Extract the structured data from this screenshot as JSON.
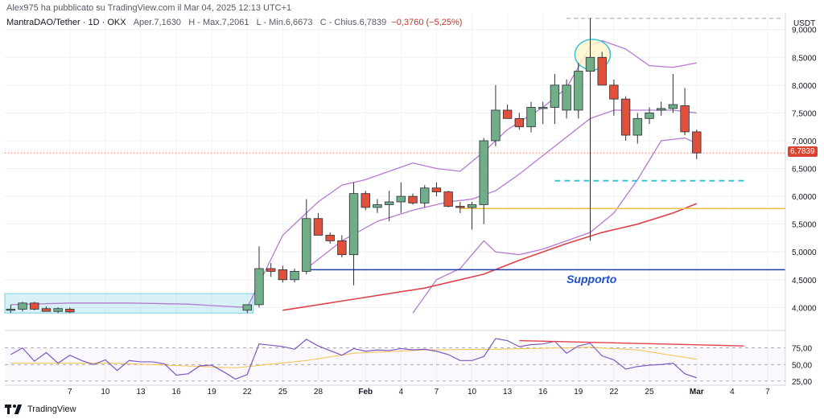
{
  "header": {
    "publisher": "Alex975 ha pubblicato su TradingView.com il Mar 04, 2025 12:13 UTC+1",
    "symbol": "MantraDAO/Tether · 1D · OKX",
    "open_label": "O",
    "open_text": "Aper.7,1630",
    "high_text": "H - Max.7,2061",
    "low_text": "L - Min.6,6673",
    "close_text": "C - Chius.6,7839",
    "change_text": "−0,3760 (−5,25%)"
  },
  "footer": {
    "brand": "TradingView"
  },
  "chart_data": {
    "type": "candlestick",
    "currency": "USDT",
    "last_price_label": "6,7839",
    "annotation": "Supporto",
    "price_axis": {
      "min": 3.6,
      "max": 9.3,
      "ticks": [
        9.0,
        8.5,
        8.0,
        7.5,
        7.0,
        6.5,
        6.0,
        5.5,
        5.0,
        4.5,
        4.0
      ],
      "tick_labels": [
        "9,0000",
        "8,5000",
        "8,0000",
        "7,5000",
        "7,0000",
        "6,5000",
        "6,0000",
        "5,5000",
        "5,0000",
        "4,5000",
        "4,0000"
      ]
    },
    "time_axis": {
      "labels": [
        "7",
        "10",
        "13",
        "16",
        "19",
        "22",
        "25",
        "28",
        "Feb",
        "4",
        "7",
        "10",
        "13",
        "16",
        "19",
        "22",
        "25",
        "Mar",
        "4",
        "7"
      ],
      "label_days": [
        6,
        9,
        12,
        15,
        18,
        21,
        24,
        27,
        31,
        34,
        37,
        40,
        43,
        46,
        49,
        52,
        55,
        59,
        62,
        65
      ],
      "day_min": 1,
      "day_max": 66
    },
    "candles": [
      {
        "d": 1,
        "o": 3.95,
        "h": 4.05,
        "l": 3.9,
        "c": 3.97
      },
      {
        "d": 2,
        "o": 3.97,
        "h": 4.1,
        "l": 3.93,
        "c": 4.08
      },
      {
        "d": 3,
        "o": 4.08,
        "h": 4.1,
        "l": 3.95,
        "c": 3.97
      },
      {
        "d": 4,
        "o": 3.98,
        "h": 4.02,
        "l": 3.93,
        "c": 3.93
      },
      {
        "d": 5,
        "o": 3.93,
        "h": 4.0,
        "l": 3.9,
        "c": 3.98
      },
      {
        "d": 6,
        "o": 3.97,
        "h": 4.0,
        "l": 3.9,
        "c": 3.92
      },
      {
        "d": 21,
        "o": 3.95,
        "h": 4.05,
        "l": 3.9,
        "c": 4.05
      },
      {
        "d": 22,
        "o": 4.05,
        "h": 5.1,
        "l": 4.0,
        "c": 4.7
      },
      {
        "d": 23,
        "o": 4.7,
        "h": 4.8,
        "l": 4.55,
        "c": 4.65
      },
      {
        "d": 24,
        "o": 4.68,
        "h": 4.75,
        "l": 4.45,
        "c": 4.5
      },
      {
        "d": 25,
        "o": 4.5,
        "h": 4.7,
        "l": 4.45,
        "c": 4.65
      },
      {
        "d": 26,
        "o": 4.65,
        "h": 5.95,
        "l": 4.6,
        "c": 5.6
      },
      {
        "d": 27,
        "o": 5.6,
        "h": 5.7,
        "l": 5.3,
        "c": 5.3
      },
      {
        "d": 28,
        "o": 5.3,
        "h": 5.35,
        "l": 5.15,
        "c": 5.2
      },
      {
        "d": 29,
        "o": 5.2,
        "h": 5.3,
        "l": 4.9,
        "c": 4.95
      },
      {
        "d": 30,
        "o": 4.95,
        "h": 6.25,
        "l": 4.4,
        "c": 6.05
      },
      {
        "d": 31,
        "o": 6.05,
        "h": 6.1,
        "l": 5.75,
        "c": 5.8
      },
      {
        "d": 32,
        "o": 5.8,
        "h": 5.95,
        "l": 5.7,
        "c": 5.85
      },
      {
        "d": 33,
        "o": 5.85,
        "h": 6.1,
        "l": 5.55,
        "c": 5.9
      },
      {
        "d": 34,
        "o": 5.9,
        "h": 6.25,
        "l": 5.7,
        "c": 6.0
      },
      {
        "d": 35,
        "o": 6.0,
        "h": 6.05,
        "l": 5.85,
        "c": 5.88
      },
      {
        "d": 36,
        "o": 5.88,
        "h": 6.2,
        "l": 5.8,
        "c": 6.15
      },
      {
        "d": 37,
        "o": 6.15,
        "h": 6.25,
        "l": 6.0,
        "c": 6.08
      },
      {
        "d": 38,
        "o": 6.08,
        "h": 6.1,
        "l": 5.8,
        "c": 5.82
      },
      {
        "d": 39,
        "o": 5.82,
        "h": 5.9,
        "l": 5.7,
        "c": 5.8
      },
      {
        "d": 40,
        "o": 5.8,
        "h": 5.9,
        "l": 5.4,
        "c": 5.85
      },
      {
        "d": 41,
        "o": 5.85,
        "h": 7.05,
        "l": 5.5,
        "c": 7.0
      },
      {
        "d": 42,
        "o": 7.0,
        "h": 8.0,
        "l": 6.9,
        "c": 7.55
      },
      {
        "d": 43,
        "o": 7.55,
        "h": 7.65,
        "l": 7.4,
        "c": 7.4
      },
      {
        "d": 44,
        "o": 7.4,
        "h": 7.5,
        "l": 7.2,
        "c": 7.25
      },
      {
        "d": 45,
        "o": 7.25,
        "h": 7.7,
        "l": 7.15,
        "c": 7.6
      },
      {
        "d": 46,
        "o": 7.6,
        "h": 7.7,
        "l": 7.3,
        "c": 7.6
      },
      {
        "d": 47,
        "o": 7.6,
        "h": 8.2,
        "l": 7.3,
        "c": 8.0
      },
      {
        "d": 48,
        "o": 7.55,
        "h": 8.1,
        "l": 7.4,
        "c": 8.0
      },
      {
        "d": 49,
        "o": 7.55,
        "h": 8.4,
        "l": 7.4,
        "c": 8.25
      },
      {
        "d": 50,
        "o": 8.25,
        "h": 9.2,
        "l": 5.2,
        "c": 8.5
      },
      {
        "d": 51,
        "o": 8.5,
        "h": 8.6,
        "l": 8.0,
        "c": 8.0
      },
      {
        "d": 52,
        "o": 8.0,
        "h": 8.1,
        "l": 7.45,
        "c": 7.75
      },
      {
        "d": 53,
        "o": 7.75,
        "h": 7.8,
        "l": 7.0,
        "c": 7.1
      },
      {
        "d": 54,
        "o": 7.1,
        "h": 7.5,
        "l": 6.95,
        "c": 7.4
      },
      {
        "d": 55,
        "o": 7.4,
        "h": 7.6,
        "l": 7.3,
        "c": 7.5
      },
      {
        "d": 56,
        "o": 7.55,
        "h": 7.7,
        "l": 7.45,
        "c": 7.58
      },
      {
        "d": 57,
        "o": 7.58,
        "h": 8.2,
        "l": 7.5,
        "c": 7.65
      },
      {
        "d": 58,
        "o": 7.63,
        "h": 7.95,
        "l": 7.1,
        "c": 7.16
      },
      {
        "d": 59,
        "o": 7.16,
        "h": 7.2,
        "l": 6.67,
        "c": 6.78
      }
    ],
    "bollinger": {
      "upper": [
        [
          1,
          4.05
        ],
        [
          6,
          4.08
        ],
        [
          11,
          4.08
        ],
        [
          16,
          4.06
        ],
        [
          21,
          4.0
        ],
        [
          24,
          5.3
        ],
        [
          27,
          5.9
        ],
        [
          29,
          6.2
        ],
        [
          31,
          6.3
        ],
        [
          33,
          6.45
        ],
        [
          35,
          6.6
        ],
        [
          37,
          6.5
        ],
        [
          39,
          6.45
        ],
        [
          41,
          6.8
        ],
        [
          43,
          7.2
        ],
        [
          46,
          7.6
        ],
        [
          48,
          7.95
        ],
        [
          50,
          8.7
        ],
        [
          51,
          8.8
        ],
        [
          53,
          8.65
        ],
        [
          55,
          8.35
        ],
        [
          57,
          8.32
        ],
        [
          59,
          8.4
        ]
      ],
      "middle": [
        [
          26,
          4.7
        ],
        [
          29,
          5.2
        ],
        [
          32,
          5.55
        ],
        [
          35,
          5.75
        ],
        [
          38,
          5.9
        ],
        [
          40,
          5.95
        ],
        [
          42,
          6.1
        ],
        [
          44,
          6.4
        ],
        [
          47,
          6.9
        ],
        [
          50,
          7.4
        ],
        [
          52,
          7.55
        ],
        [
          55,
          7.55
        ],
        [
          57,
          7.55
        ],
        [
          59,
          7.5
        ]
      ],
      "lower": [
        [
          35,
          3.9
        ],
        [
          37,
          4.5
        ],
        [
          39,
          4.7
        ],
        [
          41,
          5.2
        ],
        [
          42,
          5.0
        ],
        [
          44,
          4.95
        ],
        [
          46,
          5.05
        ],
        [
          48,
          5.2
        ],
        [
          50,
          5.35
        ],
        [
          52,
          5.7
        ],
        [
          54,
          6.3
        ],
        [
          56,
          7.0
        ],
        [
          58,
          7.05
        ],
        [
          59,
          6.95
        ]
      ]
    },
    "moving_average": [
      [
        24,
        3.95
      ],
      [
        30,
        4.15
      ],
      [
        36,
        4.35
      ],
      [
        41,
        4.6
      ],
      [
        44,
        4.85
      ],
      [
        48,
        5.15
      ],
      [
        51,
        5.35
      ],
      [
        54,
        5.5
      ],
      [
        57,
        5.7
      ],
      [
        59,
        5.87
      ]
    ],
    "levels": {
      "support_line": 4.68,
      "yellow_line": 5.78,
      "dashed_cyan": 6.28,
      "top_dashed": 9.2,
      "box_top": 4.25,
      "box_bottom": 3.9
    },
    "rsi": {
      "ticks": [
        75,
        50,
        25
      ],
      "tick_labels": [
        "75,00",
        "50,00",
        "25,00"
      ],
      "min": 20,
      "max": 100,
      "values": [
        [
          1,
          65
        ],
        [
          2,
          75
        ],
        [
          3,
          55
        ],
        [
          4,
          68
        ],
        [
          5,
          52
        ],
        [
          6,
          64
        ],
        [
          7,
          56
        ],
        [
          8,
          50
        ],
        [
          9,
          57
        ],
        [
          10,
          41
        ],
        [
          11,
          56
        ],
        [
          12,
          54
        ],
        [
          13,
          54
        ],
        [
          14,
          51
        ],
        [
          15,
          34
        ],
        [
          16,
          36
        ],
        [
          17,
          48
        ],
        [
          18,
          49
        ],
        [
          19,
          39
        ],
        [
          20,
          28
        ],
        [
          21,
          35
        ],
        [
          22,
          81
        ],
        [
          23,
          79
        ],
        [
          24,
          77
        ],
        [
          25,
          73
        ],
        [
          26,
          88
        ],
        [
          27,
          78
        ],
        [
          28,
          71
        ],
        [
          29,
          64
        ],
        [
          30,
          74
        ],
        [
          31,
          70
        ],
        [
          32,
          72
        ],
        [
          33,
          71
        ],
        [
          34,
          74
        ],
        [
          35,
          72
        ],
        [
          36,
          73
        ],
        [
          37,
          70
        ],
        [
          38,
          65
        ],
        [
          39,
          56
        ],
        [
          40,
          56
        ],
        [
          41,
          62
        ],
        [
          42,
          89
        ],
        [
          43,
          86
        ],
        [
          44,
          77
        ],
        [
          45,
          80
        ],
        [
          46,
          81
        ],
        [
          47,
          85
        ],
        [
          48,
          67
        ],
        [
          49,
          78
        ],
        [
          50,
          82
        ],
        [
          51,
          63
        ],
        [
          52,
          57
        ],
        [
          53,
          43
        ],
        [
          54,
          47
        ],
        [
          55,
          49
        ],
        [
          56,
          50
        ],
        [
          57,
          52
        ],
        [
          58,
          36
        ],
        [
          59,
          30
        ]
      ],
      "signal": [
        [
          1,
          52
        ],
        [
          10,
          52
        ],
        [
          20,
          45
        ],
        [
          26,
          56
        ],
        [
          30,
          67
        ],
        [
          36,
          72
        ],
        [
          42,
          73
        ],
        [
          50,
          76
        ],
        [
          54,
          72
        ],
        [
          59,
          58
        ]
      ],
      "divergence": [
        [
          44,
          86
        ],
        [
          63,
          78
        ]
      ]
    }
  }
}
